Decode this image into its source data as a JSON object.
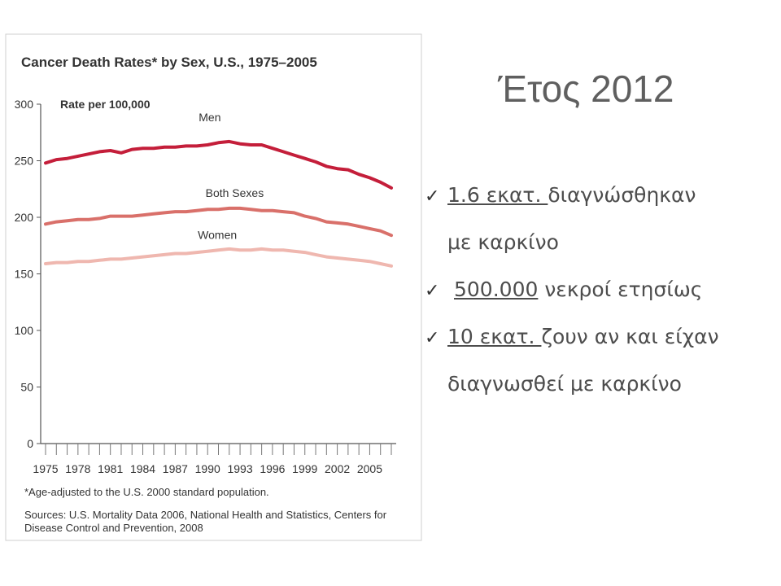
{
  "chart_data": {
    "type": "line",
    "title": "Cancer Death Rates* by Sex, U.S., 1975–2005",
    "ylabel": "Rate per 100,000",
    "xlabel": "",
    "ylim": [
      0,
      300
    ],
    "xlim": [
      1975,
      2007
    ],
    "yticks": [
      "300",
      "250",
      "200",
      "150",
      "100",
      "50",
      "0"
    ],
    "xticks": [
      "1975",
      "1978",
      "1981",
      "1984",
      "1987",
      "1990",
      "1993",
      "1996",
      "1999",
      "2002",
      "2005"
    ],
    "grid": false,
    "legend": "inline labels",
    "x": [
      1975,
      1976,
      1977,
      1978,
      1979,
      1980,
      1981,
      1982,
      1983,
      1984,
      1985,
      1986,
      1987,
      1988,
      1989,
      1990,
      1991,
      1992,
      1993,
      1994,
      1995,
      1996,
      1997,
      1998,
      1999,
      2000,
      2001,
      2002,
      2003,
      2004,
      2005,
      2006,
      2007
    ],
    "series": [
      {
        "name": "Men",
        "color": "#c41e3a",
        "label_x": 1990.2,
        "label_y": 285,
        "values": [
          248,
          251,
          252,
          254,
          256,
          258,
          259,
          257,
          260,
          261,
          261,
          262,
          262,
          263,
          263,
          264,
          266,
          267,
          265,
          264,
          264,
          261,
          258,
          255,
          252,
          249,
          245,
          243,
          242,
          238,
          235,
          231,
          226
        ]
      },
      {
        "name": "Both Sexes",
        "color": "#d9706a",
        "label_x": 1992.5,
        "label_y": 218,
        "values": [
          194,
          196,
          197,
          198,
          198,
          199,
          201,
          201,
          201,
          202,
          203,
          204,
          205,
          205,
          206,
          207,
          207,
          208,
          208,
          207,
          206,
          206,
          205,
          204,
          201,
          199,
          196,
          195,
          194,
          192,
          190,
          188,
          184
        ]
      },
      {
        "name": "Women",
        "color": "#efb7af",
        "label_x": 1990.9,
        "label_y": 181,
        "values": [
          159,
          160,
          160,
          161,
          161,
          162,
          163,
          163,
          164,
          165,
          166,
          167,
          168,
          168,
          169,
          170,
          171,
          172,
          171,
          171,
          172,
          171,
          171,
          170,
          169,
          167,
          165,
          164,
          163,
          162,
          161,
          159,
          157
        ]
      }
    ],
    "footnote": "*Age-adjusted to the U.S. 2000 standard population.",
    "sources_line1": "Sources: U.S. Mortality Data 2006, National Health and Statistics, Centers for",
    "sources_line2": "Disease Control and Prevention, 2008"
  },
  "slide": {
    "title": "Έτος 2012",
    "check_mark": "✓",
    "bullets": [
      {
        "underlined": "1.6 εκατ. ",
        "rest": "διαγνώσθηκαν",
        "continuation": "με καρκίνο"
      },
      {
        "underlined": "500.000",
        "rest": " νεκροί ετησίως"
      },
      {
        "underlined": "10 εκατ. ",
        "rest": "ζουν αν και είχαν",
        "continuation": "διαγνωσθεί με καρκίνο"
      }
    ]
  }
}
